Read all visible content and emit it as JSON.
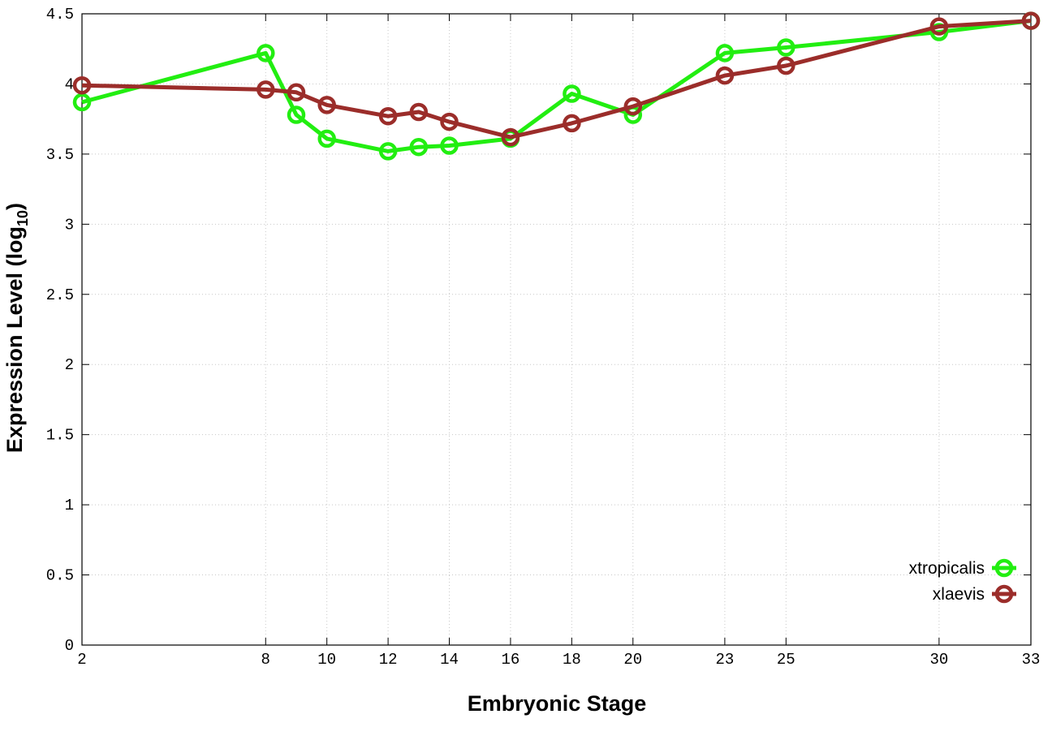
{
  "chart_data": {
    "type": "line",
    "xlabel": "Embryonic Stage",
    "ylabel": "Expression Level (log",
    "ylabel_sub": "10",
    "ylabel_suffix": ")",
    "x_ticks": [
      "2",
      "8",
      "10",
      "12",
      "14",
      "16",
      "18",
      "20",
      "23",
      "25",
      "30",
      "33"
    ],
    "x_tick_values": [
      2,
      8,
      10,
      12,
      14,
      16,
      18,
      20,
      23,
      25,
      30,
      33
    ],
    "y_ticks": [
      "0",
      "0.5",
      "1",
      "1.5",
      "2",
      "2.5",
      "3",
      "3.5",
      "4",
      "4.5"
    ],
    "y_tick_values": [
      0,
      0.5,
      1,
      1.5,
      2,
      2.5,
      3,
      3.5,
      4,
      4.5
    ],
    "xlim": [
      2,
      33
    ],
    "ylim": [
      0,
      4.5
    ],
    "grid": true,
    "legend_position": "bottom-right",
    "series": [
      {
        "name": "xtropicalis",
        "color": "#22ee11",
        "x": [
          2,
          8,
          9,
          10,
          12,
          13,
          14,
          16,
          18,
          20,
          23,
          25,
          30,
          33
        ],
        "y": [
          3.87,
          4.22,
          3.78,
          3.61,
          3.52,
          3.55,
          3.56,
          3.61,
          3.93,
          3.78,
          4.22,
          4.26,
          4.37,
          4.45
        ]
      },
      {
        "name": "xlaevis",
        "color": "#9b2d2a",
        "x": [
          2,
          8,
          9,
          10,
          12,
          13,
          14,
          16,
          18,
          20,
          23,
          25,
          30,
          33
        ],
        "y": [
          3.99,
          3.96,
          3.94,
          3.85,
          3.77,
          3.8,
          3.73,
          3.62,
          3.72,
          3.84,
          4.06,
          4.13,
          4.41,
          4.45
        ]
      }
    ]
  }
}
